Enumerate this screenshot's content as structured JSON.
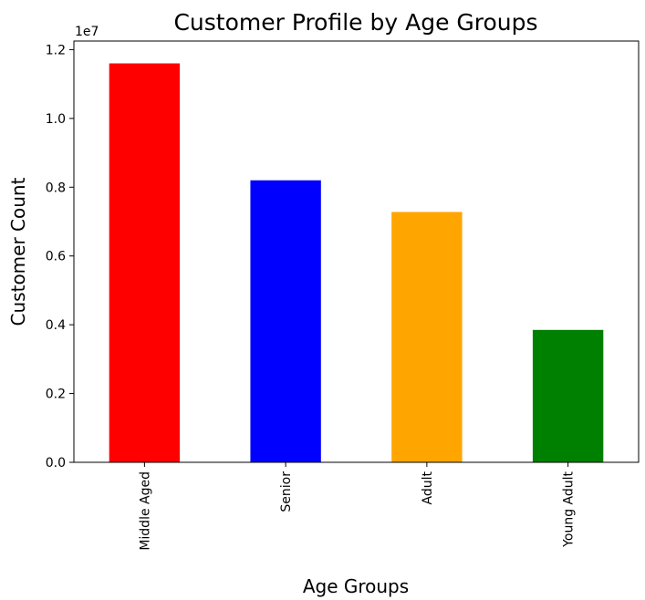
{
  "chart_data": {
    "type": "bar",
    "title": "Customer Profile by Age Groups",
    "xlabel": "Age Groups",
    "ylabel": "Customer Count",
    "y_offset_label": "1e7",
    "categories": [
      "Middle Aged",
      "Senior",
      "Adult",
      "Young Adult"
    ],
    "values": [
      11600000,
      8200000,
      7280000,
      3850000
    ],
    "colors": [
      "#ff0000",
      "#0000ff",
      "#ffa500",
      "#008000"
    ],
    "ylim": [
      0,
      12250000
    ],
    "yticks": [
      0,
      2000000,
      4000000,
      6000000,
      8000000,
      10000000,
      12000000
    ],
    "ytick_labels": [
      "0.0",
      "0.2",
      "0.4",
      "0.6",
      "0.8",
      "1.0",
      "1.2"
    ],
    "grid": false,
    "legend": false
  }
}
